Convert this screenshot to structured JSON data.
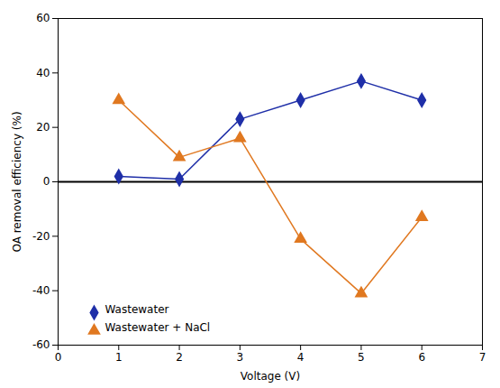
{
  "chart_data": {
    "type": "line",
    "x": [
      1,
      2,
      3,
      4,
      5,
      6
    ],
    "series": [
      {
        "name": "Wastewater",
        "color": "#1f2fa8",
        "marker": "diamond",
        "values": [
          2,
          1,
          23,
          30,
          37,
          30
        ]
      },
      {
        "name": "Wastewater + NaCl",
        "color": "#e07820",
        "marker": "triangle",
        "values": [
          30,
          9,
          16,
          -21,
          -41,
          -13
        ]
      }
    ],
    "xlabel": "Voltage (V)",
    "ylabel": "OA removal efficiency (%)",
    "xlim": [
      0,
      7
    ],
    "ylim": [
      -60,
      60
    ],
    "xticks": [
      0,
      1,
      2,
      3,
      4,
      5,
      6,
      7
    ],
    "yticks": [
      -60,
      -40,
      -20,
      0,
      20,
      40,
      60
    ],
    "grid": false,
    "legend": "lower left"
  }
}
